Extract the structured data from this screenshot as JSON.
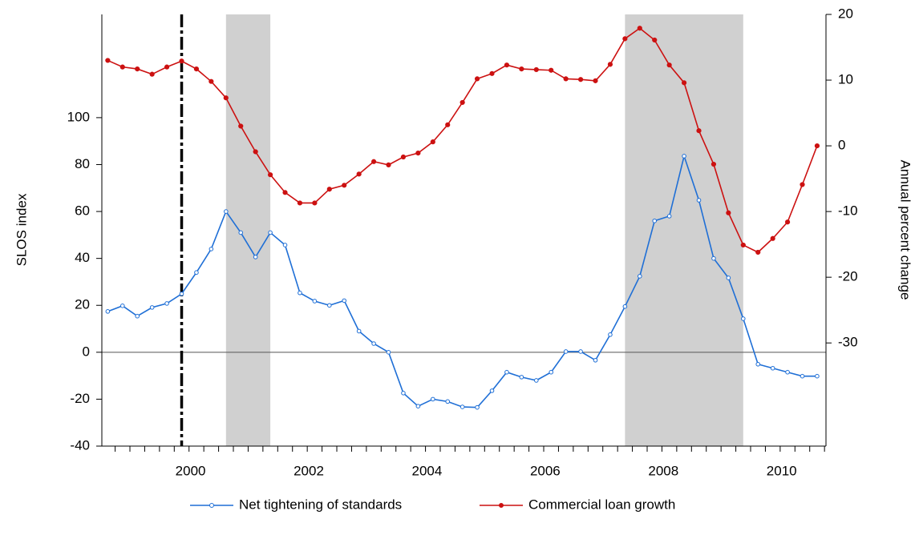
{
  "chart_data": {
    "type": "line",
    "y_label": "SLOS index",
    "y2_label": "Annual percent change",
    "x": [
      1999,
      1999.25,
      1999.5,
      1999.75,
      2000,
      2000.25,
      2000.5,
      2000.75,
      2001,
      2001.25,
      2001.5,
      2001.75,
      2002,
      2002.25,
      2002.5,
      2002.75,
      2003,
      2003.25,
      2003.5,
      2003.75,
      2004,
      2004.25,
      2004.5,
      2004.75,
      2005,
      2005.25,
      2005.5,
      2005.75,
      2006,
      2006.25,
      2006.5,
      2006.75,
      2007,
      2007.25,
      2007.5,
      2007.75,
      2008,
      2008.25,
      2008.5,
      2008.75,
      2009,
      2009.25,
      2009.5,
      2009.75,
      2010,
      2010.25,
      2010.5,
      2010.75,
      2011
    ],
    "series": [
      {
        "name": "Net tightening of standards",
        "color": "#1f6fd6",
        "marker": "open",
        "values": [
          17.4,
          19.8,
          15.4,
          19.1,
          20.8,
          24.9,
          34,
          44,
          60,
          51,
          40.6,
          51,
          45.7,
          25.3,
          21.8,
          20,
          22,
          9,
          3.7,
          0,
          -17.4,
          -23,
          -20,
          -21,
          -23.3,
          -23.5,
          -16.4,
          -8.5,
          -10.6,
          -12,
          -8.5,
          0.3,
          0.3,
          -3.4,
          7.5,
          19.5,
          32.4,
          56,
          58,
          83.6,
          64.8,
          40,
          31.7,
          14.3,
          -5.1,
          -6.8,
          -8.5,
          -10.2,
          -10.2
        ]
      },
      {
        "name": "Commercial loan growth",
        "color": "#cc1111",
        "marker": "filled",
        "axis": "y2",
        "values": [
          13,
          12,
          11.7,
          10.9,
          12,
          12.9,
          11.7,
          9.8,
          7.3,
          3,
          -0.9,
          -4.4,
          -7.1,
          -8.7,
          -8.7,
          -6.6,
          -6,
          -4.3,
          -2.4,
          -2.9,
          -1.7,
          -1.1,
          0.6,
          3.2,
          6.6,
          10.2,
          11,
          12.3,
          11.7,
          11.6,
          11.5,
          10.2,
          10.1,
          9.9,
          12.4,
          16.3,
          17.9,
          16.1,
          12.3,
          9.6,
          2.3,
          -2.8,
          -10.2,
          -15.1,
          -16.2,
          -14.1,
          -11.6,
          -5.9,
          0
        ]
      }
    ],
    "xlim": [
      1998.9,
      2011.15
    ],
    "xticks": [
      {
        "value": 2000.4,
        "label": "2000"
      },
      {
        "value": 2002.4,
        "label": "2002"
      },
      {
        "value": 2004.4,
        "label": "2004"
      },
      {
        "value": 2006.4,
        "label": "2006"
      },
      {
        "value": 2008.4,
        "label": "2008"
      },
      {
        "value": 2010.4,
        "label": "2010"
      }
    ],
    "ylim": [
      -40,
      144
    ],
    "yticks": [
      -40,
      -20,
      0,
      20,
      40,
      60,
      80,
      100
    ],
    "y2lim": [
      -45.7,
      20
    ],
    "y2ticks": [
      -30,
      -20,
      -10,
      0,
      10,
      20
    ],
    "shaded_periods": [
      [
        2001,
        2001.75
      ],
      [
        2007.75,
        2009.75
      ]
    ],
    "vline": 2000.25,
    "zero_line": 0,
    "legend": "bottom"
  }
}
